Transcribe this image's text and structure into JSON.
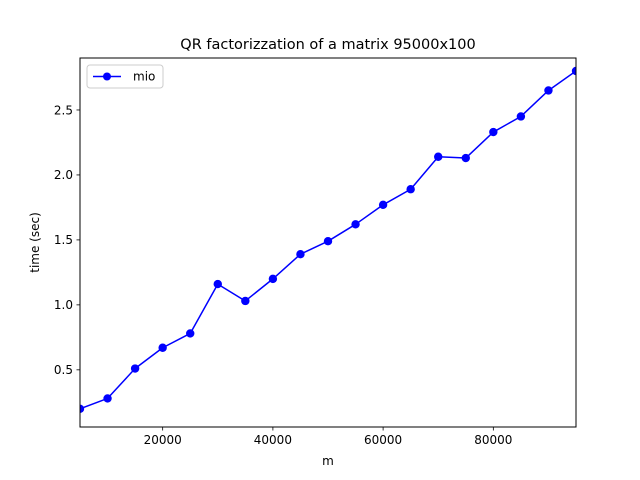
{
  "chart_data": {
    "type": "line",
    "title": "QR factorizzation of a matrix 95000x100",
    "xlabel": "m",
    "ylabel": "time (sec)",
    "xlim": [
      5000,
      95000
    ],
    "ylim": [
      0.06,
      2.9
    ],
    "xticks": [
      20000,
      40000,
      60000,
      80000
    ],
    "xtick_labels": [
      "20000",
      "40000",
      "60000",
      "80000"
    ],
    "yticks": [
      0.5,
      1.0,
      1.5,
      2.0,
      2.5
    ],
    "ytick_labels": [
      "0.5",
      "1.0",
      "1.5",
      "2.0",
      "2.5"
    ],
    "grid": false,
    "legend_position": "upper-left",
    "series": [
      {
        "name": "mio",
        "color": "#0000ff",
        "marker": "circle",
        "x": [
          5000,
          10000,
          15000,
          20000,
          25000,
          30000,
          35000,
          40000,
          45000,
          50000,
          55000,
          60000,
          65000,
          70000,
          75000,
          80000,
          85000,
          90000,
          95000
        ],
        "y": [
          0.2,
          0.28,
          0.51,
          0.67,
          0.78,
          1.16,
          1.03,
          1.2,
          1.39,
          1.49,
          1.62,
          1.77,
          1.89,
          2.14,
          2.13,
          2.33,
          2.45,
          2.65,
          2.8
        ]
      }
    ]
  }
}
